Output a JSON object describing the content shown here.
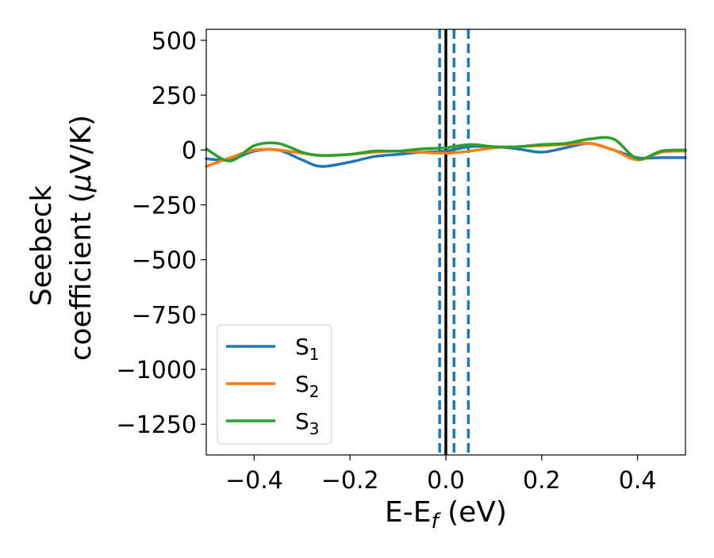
{
  "chart_data": {
    "type": "line",
    "xlabel": "E-E",
    "xlabel_sub": "f",
    "xlabel_unit": " (eV)",
    "ylabel_line1": "Seebeck",
    "ylabel_line2": "coefficient  (",
    "ylabel_mu": "μ",
    "ylabel_unit": "V/K)",
    "xlim": [
      -0.5,
      0.5
    ],
    "ylim": [
      -1390,
      550
    ],
    "x_ticks": [
      -0.4,
      -0.2,
      0.0,
      0.2,
      0.4
    ],
    "x_tick_labels": [
      "−0.4",
      "−0.2",
      "0.0",
      "0.2",
      "0.4"
    ],
    "y_ticks": [
      500,
      250,
      0,
      -250,
      -500,
      -750,
      -1000,
      -1250
    ],
    "y_tick_labels": [
      "500",
      "250",
      "0",
      "−250",
      "−500",
      "−750",
      "−1000",
      "−1250"
    ],
    "grid": false,
    "legend_position": "lower-left",
    "reference_line": {
      "x": 0.0,
      "color": "#000000",
      "style": "solid"
    },
    "dashed_lines": [
      {
        "x": -0.013,
        "color": "#1f77b4",
        "style": "dashed"
      },
      {
        "x": 0.017,
        "color": "#1f77b4",
        "style": "dashed"
      },
      {
        "x": 0.047,
        "color": "#1f77b4",
        "style": "dashed"
      }
    ],
    "x": [
      -0.5,
      -0.45,
      -0.4,
      -0.35,
      -0.3,
      -0.26,
      -0.2,
      -0.15,
      -0.1,
      -0.05,
      0.0,
      0.05,
      0.1,
      0.15,
      0.2,
      0.25,
      0.3,
      0.35,
      0.4,
      0.45,
      0.5
    ],
    "series": [
      {
        "name_base": "S",
        "name_sub": "1",
        "color": "#1f77b4",
        "values": [
          -40,
          -45,
          -5,
          0,
          -45,
          -75,
          -55,
          -30,
          -20,
          -10,
          -5,
          15,
          15,
          5,
          -10,
          10,
          30,
          0,
          -35,
          -35,
          -35
        ]
      },
      {
        "name_base": "S",
        "name_sub": "2",
        "color": "#ff7f0e",
        "values": [
          -75,
          -35,
          0,
          0,
          -15,
          -25,
          -20,
          -10,
          -5,
          -10,
          -15,
          -5,
          10,
          15,
          20,
          25,
          30,
          0,
          -45,
          -10,
          -5
        ]
      },
      {
        "name_base": "S",
        "name_sub": "3",
        "color": "#2ca02c",
        "values": [
          5,
          -50,
          20,
          30,
          -10,
          -25,
          -20,
          -5,
          -5,
          5,
          10,
          25,
          15,
          15,
          25,
          30,
          50,
          50,
          -40,
          -5,
          0
        ]
      }
    ]
  }
}
